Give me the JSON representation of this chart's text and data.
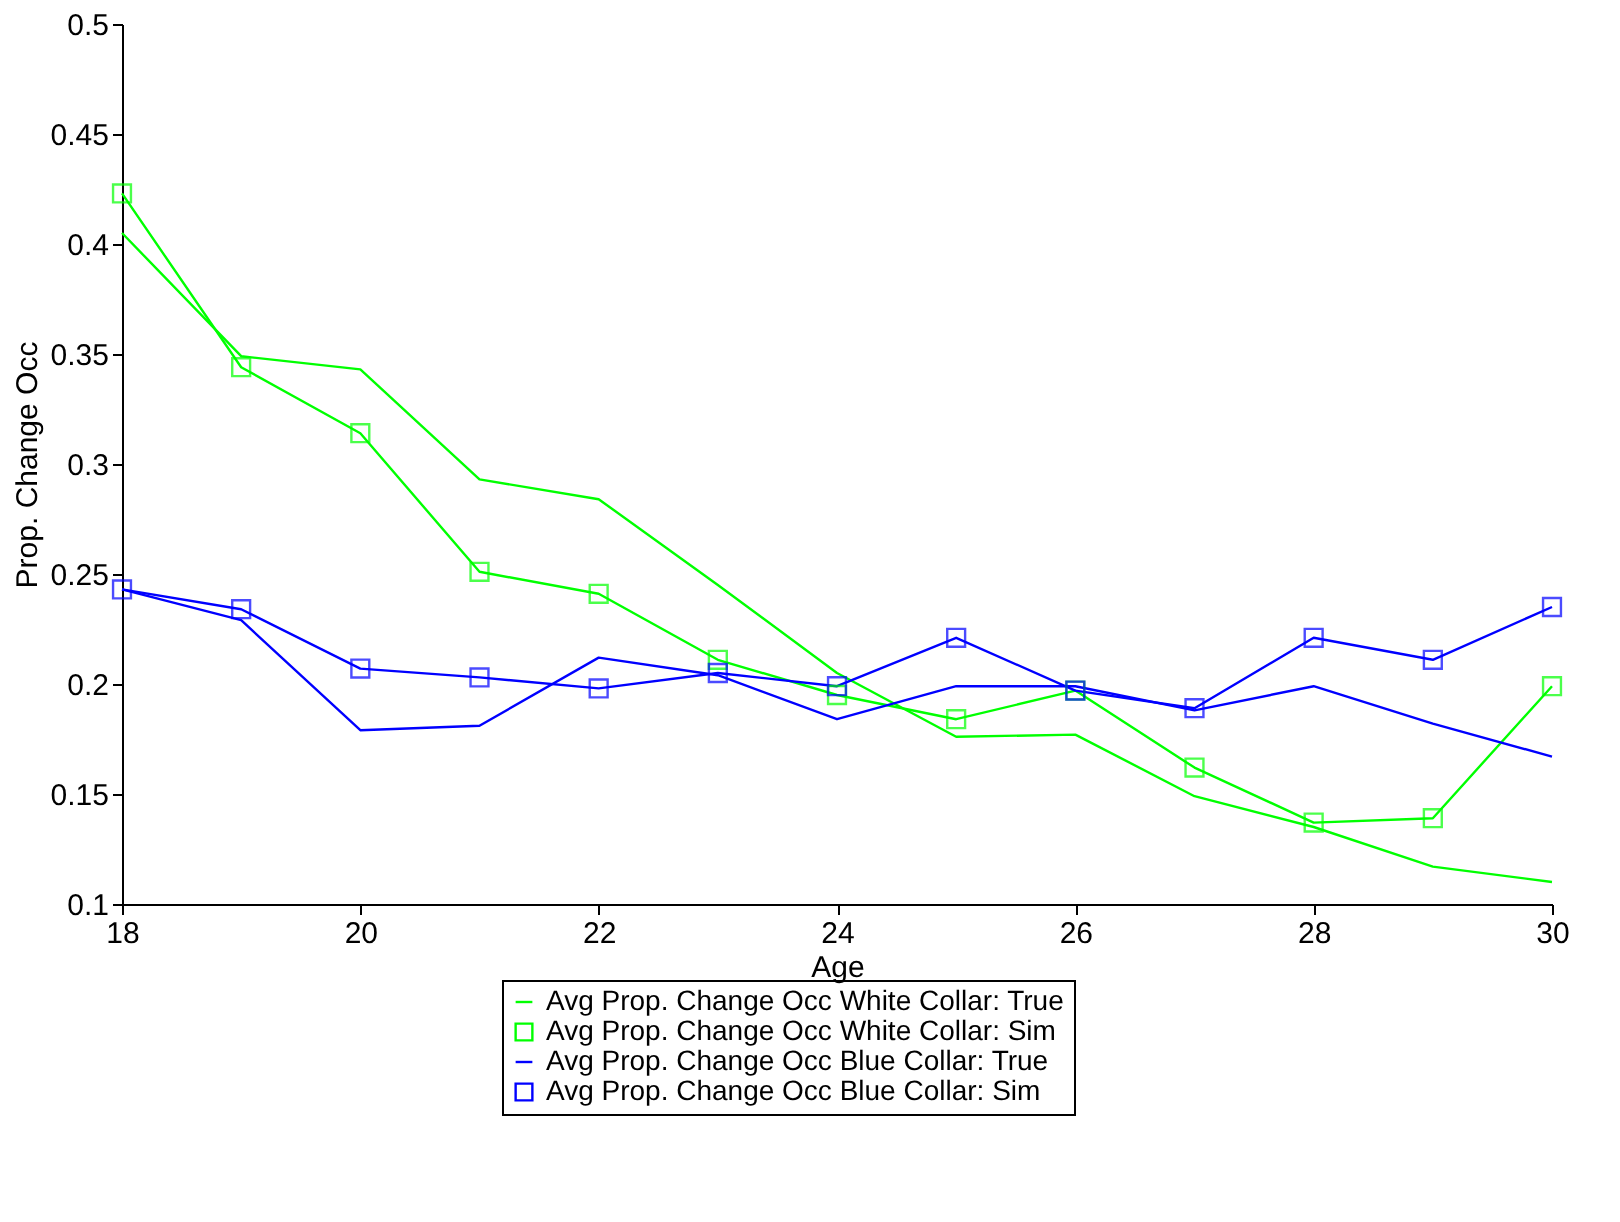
{
  "chart_data": {
    "type": "line",
    "xlabel": "Age",
    "ylabel": "Prop. Change Occ",
    "x": [
      18,
      19,
      20,
      21,
      22,
      23,
      24,
      25,
      26,
      27,
      28,
      29,
      30
    ],
    "xlim": [
      18,
      30
    ],
    "xticks": [
      18,
      20,
      22,
      24,
      26,
      28,
      30
    ],
    "ylim": [
      0.1,
      0.5
    ],
    "yticks": [
      0.1,
      0.15,
      0.2,
      0.25,
      0.3,
      0.35,
      0.4,
      0.45,
      0.5
    ],
    "grid": false,
    "legend": "bottom",
    "line_style": "solid",
    "series": [
      {
        "name": "Avg Prop. Change Occ White Collar: True",
        "color": "#00ff00",
        "marker": "none",
        "values": [
          0.405,
          0.349,
          0.343,
          0.293,
          0.284,
          0.245,
          0.205,
          0.176,
          0.177,
          0.149,
          0.135,
          0.117,
          0.11
        ]
      },
      {
        "name": "Avg Prop. Change Occ White Collar: Sim",
        "color": "#00ff00",
        "marker": "square",
        "values": [
          0.423,
          0.344,
          0.314,
          0.251,
          0.241,
          0.211,
          0.195,
          0.184,
          0.197,
          0.162,
          0.137,
          0.139,
          0.199
        ]
      },
      {
        "name": "Avg Prop. Change Occ Blue Collar: True",
        "color": "#0000ff",
        "marker": "none",
        "values": [
          0.243,
          0.229,
          0.179,
          0.181,
          0.212,
          0.204,
          0.184,
          0.199,
          0.199,
          0.188,
          0.199,
          0.182,
          0.167
        ]
      },
      {
        "name": "Avg Prop. Change Occ Blue Collar: Sim",
        "color": "#0000ff",
        "marker": "square",
        "values": [
          0.243,
          0.234,
          0.207,
          0.203,
          0.198,
          0.205,
          0.199,
          0.221,
          0.197,
          0.189,
          0.221,
          0.211,
          0.235
        ]
      }
    ]
  }
}
